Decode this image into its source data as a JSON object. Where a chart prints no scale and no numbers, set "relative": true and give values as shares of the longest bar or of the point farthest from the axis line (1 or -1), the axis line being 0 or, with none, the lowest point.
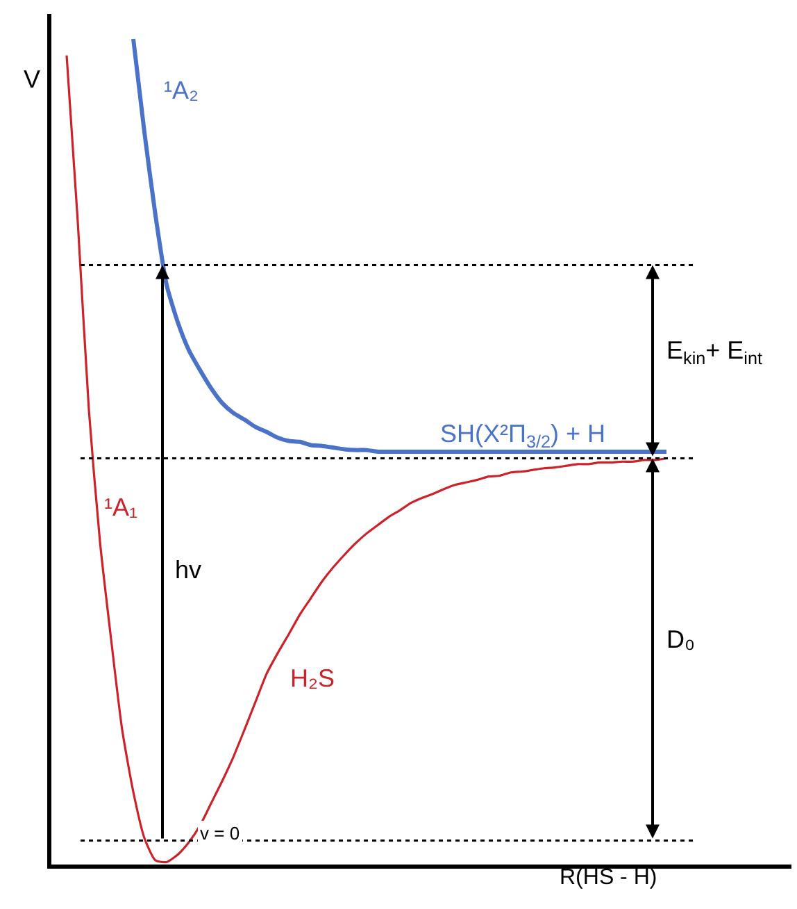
{
  "chart_data": {
    "type": "line",
    "relative": true,
    "xlabel": "R(HS - H)",
    "ylabel": "V",
    "tick_labels": false,
    "legend": false,
    "categories": [
      null,
      null,
      null,
      null,
      null,
      null,
      null,
      null,
      null,
      null,
      null,
      null,
      null,
      null,
      null,
      null,
      null,
      null,
      null,
      null,
      null,
      null,
      null,
      null,
      null,
      null,
      null,
      null,
      null,
      null,
      null,
      null,
      null,
      null,
      null,
      null,
      null,
      null,
      null,
      null,
      null,
      null,
      null,
      null,
      null,
      null,
      null,
      null,
      null,
      null,
      null,
      null,
      null,
      null,
      null
    ],
    "series": [
      {
        "name": "¹A₁",
        "color": "#cc2229",
        "values": [
          0.98,
          0.779,
          0.551,
          0.391,
          0.273,
          0.163,
          0.088,
          0.032,
          0.005,
          0.003,
          0.012,
          0.027,
          0.047,
          0.074,
          0.101,
          0.13,
          0.163,
          0.197,
          0.231,
          0.256,
          0.279,
          0.303,
          0.323,
          0.343,
          0.36,
          0.375,
          0.389,
          0.401,
          0.411,
          0.421,
          0.429,
          0.438,
          0.444,
          0.449,
          0.455,
          0.46,
          0.463,
          0.466,
          0.47,
          0.471,
          0.475,
          0.476,
          0.478,
          0.48,
          0.481,
          0.483,
          0.485,
          0.485,
          0.487,
          0.487,
          0.488,
          0.488,
          0.49,
          0.49,
          0.492
        ]
      },
      {
        "name": "¹A₂",
        "color": "#4a72c8",
        "values": [
          null,
          null,
          null,
          null,
          null,
          null,
          1.0,
          0.887,
          0.786,
          0.702,
          0.657,
          0.623,
          0.599,
          0.577,
          0.559,
          0.547,
          0.539,
          0.53,
          0.524,
          0.517,
          0.513,
          0.512,
          0.508,
          0.507,
          0.505,
          0.503,
          0.502,
          0.502,
          0.5,
          0.5,
          0.5,
          0.5,
          0.5,
          0.5,
          0.5,
          0.5,
          0.5,
          0.5,
          0.5,
          0.5,
          0.5,
          0.5,
          0.5,
          0.5,
          0.5,
          0.5,
          0.5,
          0.5,
          0.5,
          0.5,
          0.5,
          0.5,
          0.5,
          0.5,
          0.5
        ]
      }
    ],
    "ref_lines": [
      {
        "axis": "y",
        "value": 0.726,
        "color": "#000000",
        "line_style": "dotted"
      },
      {
        "axis": "y",
        "value": 0.492,
        "color": "#000000",
        "line_style": "dotted"
      },
      {
        "axis": "y",
        "value": 0.029,
        "color": "#000000",
        "line_style": "dotted"
      }
    ],
    "annotations": [
      "hv",
      "H₂S",
      "SH(X²Π$_{3/2}$) + H",
      "E$_{kin}$+ E$_{int}$",
      "D₀",
      "v = 0"
    ]
  }
}
